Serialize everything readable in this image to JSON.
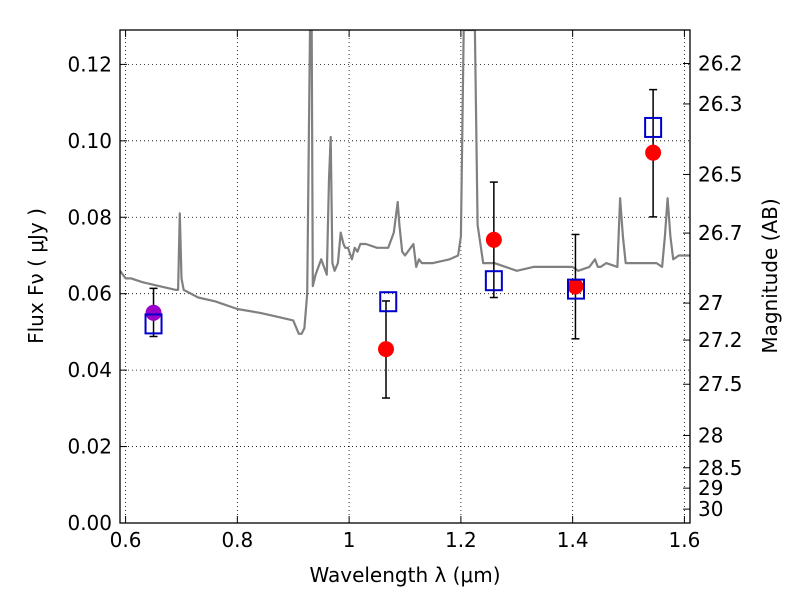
{
  "chart_data": {
    "type": "scatter",
    "xlabel": "Wavelength  λ (μm)",
    "ylabel": "Flux  Fν  ( μJy )",
    "ylabel_right": "Magnitude (AB)",
    "xlim": [
      0.59,
      1.61
    ],
    "ylim": [
      0.0,
      0.129
    ],
    "grid": true,
    "x_ticks": [
      {
        "value": 0.6,
        "label": "0.6"
      },
      {
        "value": 0.8,
        "label": "0.8"
      },
      {
        "value": 1.0,
        "label": "1"
      },
      {
        "value": 1.2,
        "label": "1.2"
      },
      {
        "value": 1.4,
        "label": "1.4"
      },
      {
        "value": 1.6,
        "label": "1.6"
      }
    ],
    "y_ticks": [
      {
        "value": 0.0,
        "label": "0.00"
      },
      {
        "value": 0.02,
        "label": "0.02"
      },
      {
        "value": 0.04,
        "label": "0.04"
      },
      {
        "value": 0.06,
        "label": "0.06"
      },
      {
        "value": 0.08,
        "label": "0.08"
      },
      {
        "value": 0.1,
        "label": "0.10"
      },
      {
        "value": 0.12,
        "label": "0.12"
      }
    ],
    "y_right_ticks": [
      {
        "value": 26.2,
        "label": "26.2"
      },
      {
        "value": 26.3,
        "label": "26.3"
      },
      {
        "value": 26.5,
        "label": "26.5"
      },
      {
        "value": 26.7,
        "label": "26.7"
      },
      {
        "value": 27,
        "label": "27"
      },
      {
        "value": 27.2,
        "label": "27.2"
      },
      {
        "value": 27.5,
        "label": "27.5"
      },
      {
        "value": 28,
        "label": "28"
      },
      {
        "value": 28.5,
        "label": "28.5"
      },
      {
        "value": 29,
        "label": "29"
      },
      {
        "value": 30,
        "label": "30"
      }
    ],
    "series": [
      {
        "kind": "points",
        "marker": "circle",
        "color": "#ff0000",
        "points": [
          {
            "x": 1.066,
            "y": 0.0455,
            "yerr_low": 0.0327,
            "yerr_high": 0.0581
          },
          {
            "x": 1.259,
            "y": 0.0741,
            "yerr_low": 0.059,
            "yerr_high": 0.0892
          },
          {
            "x": 1.405,
            "y": 0.0619,
            "yerr_low": 0.0482,
            "yerr_high": 0.0755
          },
          {
            "x": 1.544,
            "y": 0.0969,
            "yerr_low": 0.0801,
            "yerr_high": 0.1134
          }
        ]
      },
      {
        "kind": "points",
        "marker": "circle",
        "color": "#9b00c8",
        "points": [
          {
            "x": 0.65,
            "y": 0.055,
            "yerr_low": 0.0488,
            "yerr_high": 0.0614
          }
        ]
      },
      {
        "kind": "points",
        "marker": "square",
        "color": "#0000cc",
        "points": [
          {
            "x": 0.65,
            "y": 0.0521
          },
          {
            "x": 1.07,
            "y": 0.0579
          },
          {
            "x": 1.259,
            "y": 0.0634
          },
          {
            "x": 1.406,
            "y": 0.0612
          },
          {
            "x": 1.544,
            "y": 0.1035
          }
        ]
      },
      {
        "kind": "line",
        "color": "#808080",
        "x": [
          0.59,
          0.6,
          0.61,
          0.63,
          0.66,
          0.69,
          0.694,
          0.697,
          0.7,
          0.704,
          0.73,
          0.76,
          0.8,
          0.84,
          0.87,
          0.9,
          0.91,
          0.915,
          0.92,
          0.925,
          0.93,
          0.933,
          0.935,
          0.94,
          0.95,
          0.96,
          0.964,
          0.967,
          0.97,
          0.974,
          0.98,
          0.985,
          0.99,
          0.993,
          0.998,
          1.005,
          1.01,
          1.015,
          1.02,
          1.03,
          1.05,
          1.07,
          1.08,
          1.087,
          1.09,
          1.095,
          1.1,
          1.115,
          1.12,
          1.125,
          1.13,
          1.15,
          1.18,
          1.195,
          1.2,
          1.205,
          1.21,
          1.215,
          1.22,
          1.225,
          1.23,
          1.24,
          1.26,
          1.28,
          1.3,
          1.33,
          1.35,
          1.38,
          1.4,
          1.41,
          1.43,
          1.44,
          1.445,
          1.45,
          1.46,
          1.48,
          1.485,
          1.49,
          1.495,
          1.5,
          1.52,
          1.55,
          1.56,
          1.565,
          1.57,
          1.575,
          1.58,
          1.59,
          1.6,
          1.61
        ],
        "y": [
          0.066,
          0.064,
          0.064,
          0.063,
          0.062,
          0.061,
          0.061,
          0.081,
          0.064,
          0.061,
          0.059,
          0.058,
          0.056,
          0.055,
          0.054,
          0.053,
          0.0495,
          0.0495,
          0.051,
          0.06,
          0.129,
          0.129,
          0.062,
          0.065,
          0.069,
          0.065,
          0.09,
          0.101,
          0.068,
          0.066,
          0.068,
          0.076,
          0.073,
          0.072,
          0.072,
          0.069,
          0.072,
          0.071,
          0.073,
          0.073,
          0.072,
          0.072,
          0.076,
          0.084,
          0.078,
          0.071,
          0.07,
          0.073,
          0.067,
          0.069,
          0.068,
          0.068,
          0.069,
          0.07,
          0.075,
          0.129,
          0.129,
          0.129,
          0.129,
          0.129,
          0.078,
          0.068,
          0.068,
          0.067,
          0.066,
          0.067,
          0.067,
          0.067,
          0.067,
          0.066,
          0.067,
          0.069,
          0.067,
          0.067,
          0.068,
          0.067,
          0.085,
          0.075,
          0.068,
          0.068,
          0.068,
          0.068,
          0.067,
          0.075,
          0.085,
          0.075,
          0.069,
          0.07,
          0.07,
          0.07
        ]
      }
    ]
  }
}
